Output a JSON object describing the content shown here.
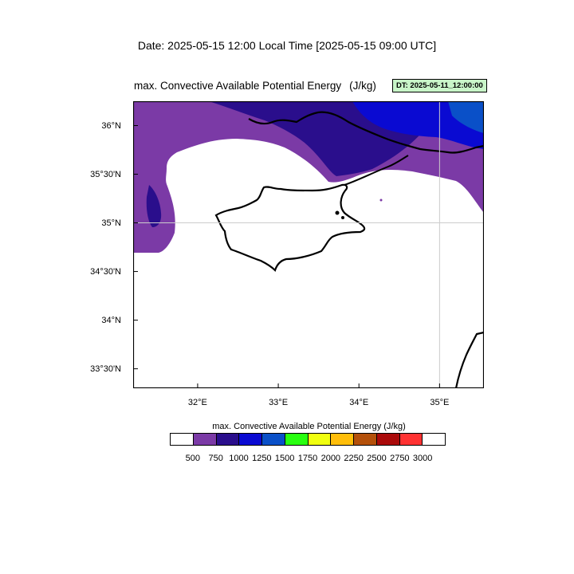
{
  "header": {
    "date_line": "Date: 2025-05-15  12:00 Local Time [2025-05-15  09:00 UTC]",
    "title": "max. Convective Available Potential Energy",
    "units": "(J/kg)",
    "dt_badge": "DT: 2025-05-11_12:00:00"
  },
  "map": {
    "lat_ticks": [
      {
        "label": "36°N",
        "lat": 36.0
      },
      {
        "label": "35°30'N",
        "lat": 35.5
      },
      {
        "label": "35°N",
        "lat": 35.0
      },
      {
        "label": "34°30'N",
        "lat": 34.5
      },
      {
        "label": "34°N",
        "lat": 34.0
      },
      {
        "label": "33°30'N",
        "lat": 33.5
      }
    ],
    "lon_ticks": [
      {
        "label": "32°E",
        "lon": 32.0
      },
      {
        "label": "33°E",
        "lon": 33.0
      },
      {
        "label": "34°E",
        "lon": 34.0
      },
      {
        "label": "35°E",
        "lon": 35.0
      }
    ],
    "lon_range": [
      31.2,
      35.55
    ],
    "lat_range": [
      33.3,
      36.25
    ],
    "grid_lines": {
      "lon": 35.0,
      "lat": 35.0
    }
  },
  "colorbar": {
    "title": "max. Convective Available Potential Energy  (J/kg)",
    "colors": [
      "#ffffff",
      "#7b3aa6",
      "#2a0e8c",
      "#0a0ad2",
      "#0a50c8",
      "#28ff10",
      "#f0ff10",
      "#ffbe0a",
      "#b4500a",
      "#aa0a0a",
      "#ff3232",
      "#ffffff"
    ],
    "labels": [
      "500",
      "750",
      "1000",
      "1250",
      "1500",
      "1750",
      "2000",
      "2250",
      "2500",
      "2750",
      "3000"
    ]
  }
}
